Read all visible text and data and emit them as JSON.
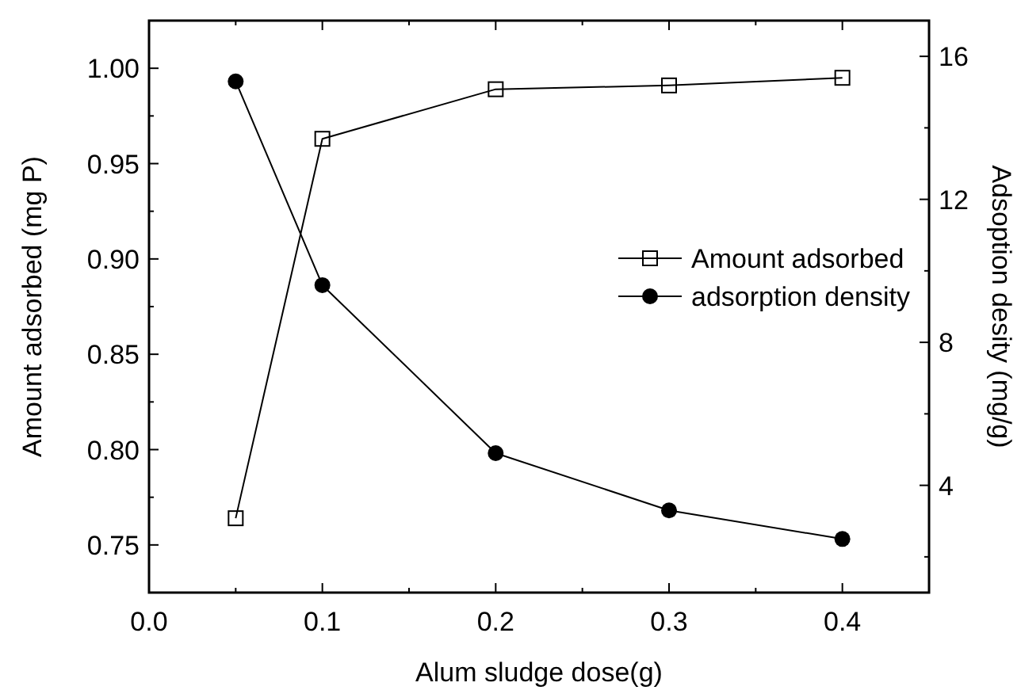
{
  "chart_data": {
    "type": "line",
    "xlabel": "Alum sludge dose(g)",
    "ylabel": "Amount adsorbed (mg P)",
    "y2label": "Adsoption desity (mg/g)",
    "x": [
      0.05,
      0.1,
      0.2,
      0.3,
      0.4
    ],
    "series": [
      {
        "name": "Amount adsorbed",
        "color": "#000000",
        "marker": "square",
        "values": [
          0.764,
          0.963,
          0.989,
          0.991,
          0.995
        ]
      },
      {
        "name": "adsorption density",
        "color": "#000000",
        "marker": "circle",
        "axis": "y2",
        "values": [
          15.3,
          9.6,
          4.9,
          3.3,
          2.5
        ]
      }
    ],
    "xlim": [
      0,
      0.45
    ],
    "xticks": [
      {
        "value": 0,
        "label": "0.0"
      },
      {
        "value": 0.05,
        "label": null
      },
      0.1,
      {
        "value": 0.15,
        "label": null
      },
      0.2,
      {
        "value": 0.25,
        "label": null
      },
      0.3,
      {
        "value": 0.35,
        "label": null
      },
      0.4
    ],
    "ylim": [
      0.725,
      1.025
    ],
    "yticks": [
      {
        "value": 0.75,
        "label": "0.75"
      },
      {
        "value": 0.775,
        "label": null
      },
      {
        "value": 0.8,
        "label": "0.80"
      },
      {
        "value": 0.825,
        "label": null
      },
      {
        "value": 0.85,
        "label": "0.85"
      },
      {
        "value": 0.875,
        "label": null
      },
      {
        "value": 0.9,
        "label": "0.90"
      },
      {
        "value": 0.925,
        "label": null
      },
      {
        "value": 0.95,
        "label": "0.95"
      },
      {
        "value": 0.975,
        "label": null
      },
      {
        "value": 1,
        "label": "1.00"
      }
    ],
    "y2lim": [
      1,
      17
    ],
    "y2ticks": [
      {
        "value": 2,
        "label": null
      },
      4,
      {
        "value": 6,
        "label": null
      },
      8,
      {
        "value": 10,
        "label": null
      },
      12,
      {
        "value": 14,
        "label": null
      },
      16
    ],
    "legend": "right",
    "line_style": "solid",
    "grid": false
  }
}
